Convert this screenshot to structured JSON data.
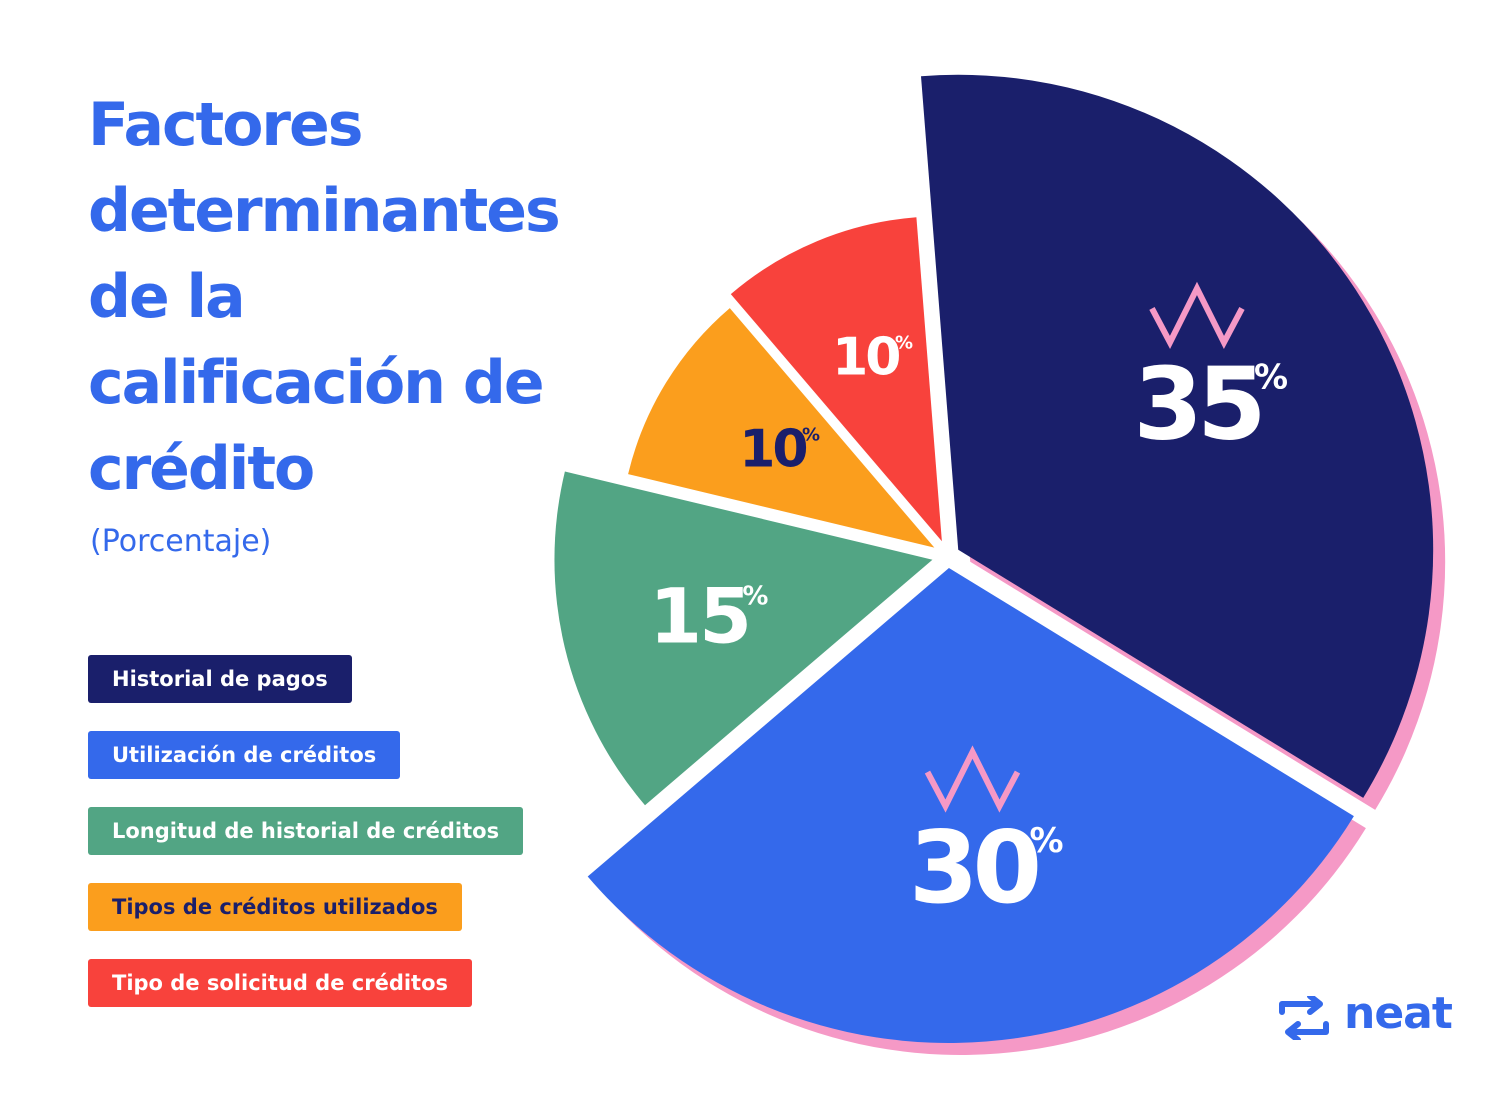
{
  "title": "Factores determinantes de la calificación de crédito",
  "subtitle": "(Porcentaje)",
  "chart_data": {
    "type": "pie",
    "title": "Factores determinantes de la calificación de crédito",
    "subtitle": "(Porcentaje)",
    "unit": "%",
    "slices": [
      {
        "label": "Historial de pagos",
        "value": 35,
        "color": "#1a1f6b",
        "label_color": "#ffffff",
        "highlight": true
      },
      {
        "label": "Utilización de créditos",
        "value": 30,
        "color": "#3469eb",
        "label_color": "#ffffff",
        "highlight": true
      },
      {
        "label": "Longitud de historial de créditos",
        "value": 15,
        "color": "#52a584",
        "label_color": "#ffffff",
        "highlight": false
      },
      {
        "label": "Tipos de créditos utilizados",
        "value": 10,
        "color": "#fb9e1d",
        "label_color": "#1a1f6b",
        "highlight": false
      },
      {
        "label": "Tipo de solicitud de créditos",
        "value": 10,
        "color": "#f8423c",
        "label_color": "#ffffff",
        "highlight": false
      }
    ],
    "shadow_color": "#f599c6",
    "legend_position": "left"
  },
  "legend_text_colors": [
    "#ffffff",
    "#ffffff",
    "#ffffff",
    "#1a1f6b",
    "#ffffff"
  ],
  "brand": {
    "name": "neat",
    "color": "#3469eb"
  }
}
